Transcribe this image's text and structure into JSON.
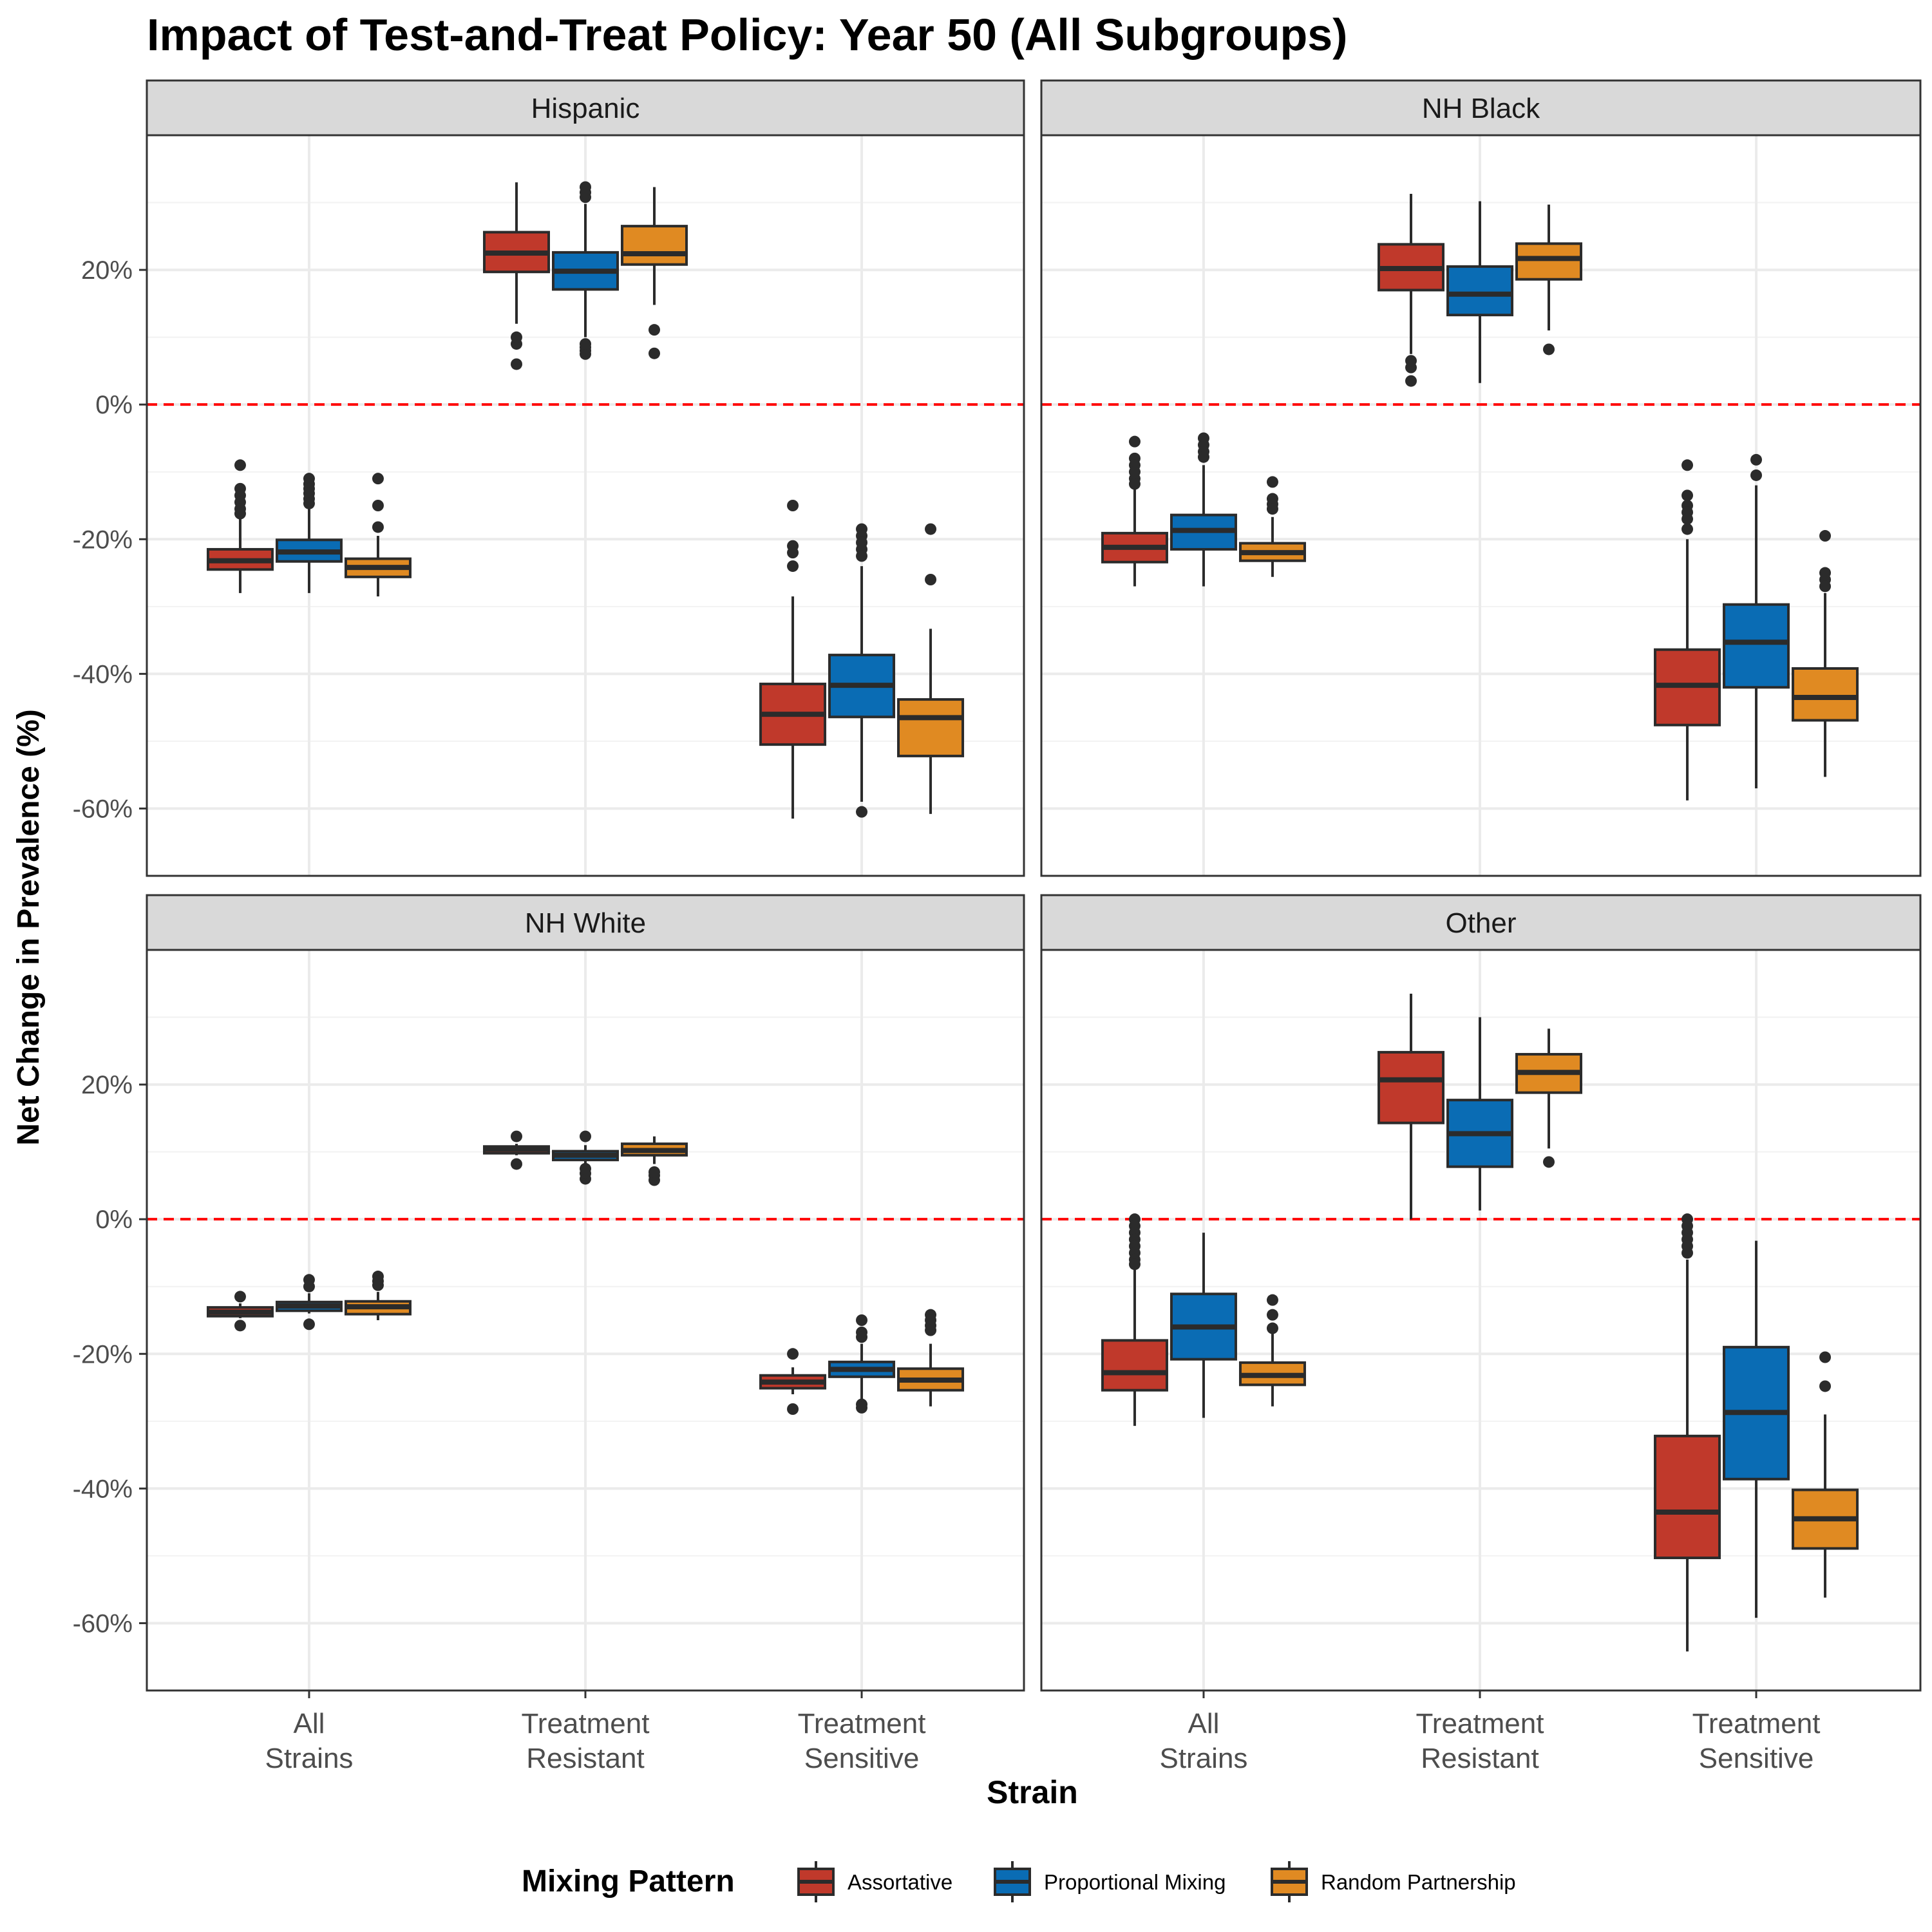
{
  "title": "Impact of Test-and-Treat Policy: Year 50 (All Subgroups)",
  "chart_data": {
    "type": "boxplot",
    "title": "Impact of Test-and-Treat Policy: Year 50 (All Subgroups)",
    "xlabel": "Strain",
    "ylabel": "Net Change in Prevalence (%)",
    "categories": [
      [
        "All",
        "Strains"
      ],
      [
        "Treatment",
        "Resistant"
      ],
      [
        "Treatment",
        "Sensitive"
      ]
    ],
    "ylim": [
      -70,
      40
    ],
    "y_ticks": [
      20,
      0,
      -20,
      -40,
      -60
    ],
    "y_tick_labels": [
      "20%",
      "0%",
      "-20%",
      "-40%",
      "-60%"
    ],
    "reference_line": {
      "y": 0,
      "color": "#ff0000",
      "style": "dashed"
    },
    "grid": true,
    "legend": {
      "title": "Mixing Pattern",
      "position": "bottom",
      "entries": [
        {
          "name": "Assortative",
          "color": "#c0392b"
        },
        {
          "name": "Proportional Mixing",
          "color": "#0a6cb4"
        },
        {
          "name": "Random Partnership",
          "color": "#e08a22"
        }
      ]
    },
    "panels": [
      {
        "name": "Hispanic",
        "boxes": [
          {
            "category": 0,
            "series": 0,
            "lw": -28,
            "q1": -24.5,
            "med": -23.2,
            "q3": -21.5,
            "uw": -17,
            "outliers": [
              -9,
              -12.5,
              -13.5,
              -14.5,
              -15.5,
              -16.2
            ]
          },
          {
            "category": 0,
            "series": 1,
            "lw": -28,
            "q1": -23.3,
            "med": -21.9,
            "q3": -20.1,
            "uw": -15,
            "outliers": [
              -11,
              -11.8,
              -12.5,
              -13.2,
              -14,
              -14.7
            ]
          },
          {
            "category": 0,
            "series": 2,
            "lw": -28.5,
            "q1": -25.6,
            "med": -24.2,
            "q3": -22.9,
            "uw": -19.5,
            "outliers": [
              -11,
              -15,
              -18.2
            ]
          },
          {
            "category": 1,
            "series": 0,
            "lw": 12,
            "q1": 19.7,
            "med": 22.5,
            "q3": 25.6,
            "uw": 33,
            "outliers": [
              9,
              10,
              6
            ]
          },
          {
            "category": 1,
            "series": 1,
            "lw": 10,
            "q1": 17.1,
            "med": 19.8,
            "q3": 22.6,
            "uw": 29.8,
            "outliers": [
              7.5,
              8,
              8.5,
              9,
              30.8,
              31.5,
              32.3
            ]
          },
          {
            "category": 1,
            "series": 2,
            "lw": 14.8,
            "q1": 20.8,
            "med": 22.4,
            "q3": 26.5,
            "uw": 32.3,
            "outliers": [
              7.6,
              11.1
            ]
          },
          {
            "category": 2,
            "series": 0,
            "lw": -61.5,
            "q1": -50.5,
            "med": -46,
            "q3": -41.5,
            "uw": -28.5,
            "outliers": [
              -15,
              -21,
              -22,
              -24
            ]
          },
          {
            "category": 2,
            "series": 1,
            "lw": -59,
            "q1": -46.4,
            "med": -41.7,
            "q3": -37.2,
            "uw": -24,
            "outliers": [
              -18.5,
              -19.5,
              -20.5,
              -21.5,
              -22.5,
              -60.5
            ]
          },
          {
            "category": 2,
            "series": 2,
            "lw": -60.8,
            "q1": -52.2,
            "med": -46.5,
            "q3": -43.8,
            "uw": -33.3,
            "outliers": [
              -18.5,
              -26
            ]
          }
        ]
      },
      {
        "name": "NH Black",
        "boxes": [
          {
            "category": 0,
            "series": 0,
            "lw": -27,
            "q1": -23.4,
            "med": -21.2,
            "q3": -19.1,
            "uw": -12.5,
            "outliers": [
              -5.5,
              -8,
              -9,
              -10,
              -11,
              -11.8
            ]
          },
          {
            "category": 0,
            "series": 1,
            "lw": -27,
            "q1": -21.5,
            "med": -18.7,
            "q3": -16.4,
            "uw": -9,
            "outliers": [
              -5,
              -6,
              -7,
              -7.8
            ]
          },
          {
            "category": 0,
            "series": 2,
            "lw": -25.6,
            "q1": -23.2,
            "med": -22,
            "q3": -20.6,
            "uw": -16.7,
            "outliers": [
              -11.5,
              -14,
              -14.8,
              -15.5
            ]
          },
          {
            "category": 1,
            "series": 0,
            "lw": 7.5,
            "q1": 17,
            "med": 20.2,
            "q3": 23.8,
            "uw": 31.3,
            "outliers": [
              3.5,
              5.5,
              6.5
            ]
          },
          {
            "category": 1,
            "series": 1,
            "lw": 3.2,
            "q1": 13.3,
            "med": 16.4,
            "q3": 20.5,
            "uw": 30.2,
            "outliers": []
          },
          {
            "category": 1,
            "series": 2,
            "lw": 11,
            "q1": 18.6,
            "med": 21.7,
            "q3": 23.9,
            "uw": 29.7,
            "outliers": [
              8.2
            ]
          },
          {
            "category": 2,
            "series": 0,
            "lw": -58.8,
            "q1": -47.6,
            "med": -41.7,
            "q3": -36.4,
            "uw": -20,
            "outliers": [
              -9,
              -13.5,
              -15,
              -16,
              -17,
              -18.5
            ]
          },
          {
            "category": 2,
            "series": 1,
            "lw": -57,
            "q1": -42,
            "med": -35.3,
            "q3": -29.7,
            "uw": -12,
            "outliers": [
              -8.2,
              -10.5
            ]
          },
          {
            "category": 2,
            "series": 2,
            "lw": -55.3,
            "q1": -46.9,
            "med": -43.5,
            "q3": -39.2,
            "uw": -28,
            "outliers": [
              -19.5,
              -25,
              -26,
              -27
            ]
          }
        ]
      },
      {
        "name": "NH White",
        "boxes": [
          {
            "category": 0,
            "series": 0,
            "lw": -14.7,
            "q1": -14.4,
            "med": -13.8,
            "q3": -13.1,
            "uw": -12.5,
            "outliers": [
              -11.5,
              -15.8
            ]
          },
          {
            "category": 0,
            "series": 1,
            "lw": -14,
            "q1": -13.6,
            "med": -12.9,
            "q3": -12.3,
            "uw": -11,
            "outliers": [
              -9,
              -10,
              -15.6
            ]
          },
          {
            "category": 0,
            "series": 2,
            "lw": -15,
            "q1": -14.1,
            "med": -13,
            "q3": -12.2,
            "uw": -10.8,
            "outliers": [
              -8.5,
              -9.2,
              -9.8
            ]
          },
          {
            "category": 1,
            "series": 0,
            "lw": 9.5,
            "q1": 9.8,
            "med": 10.4,
            "q3": 10.8,
            "uw": 11.2,
            "outliers": [
              8.2,
              12.3
            ]
          },
          {
            "category": 1,
            "series": 1,
            "lw": 8.2,
            "q1": 8.8,
            "med": 9.5,
            "q3": 10.1,
            "uw": 11,
            "outliers": [
              6,
              6.8,
              7.5,
              12.3
            ]
          },
          {
            "category": 1,
            "series": 2,
            "lw": 8.2,
            "q1": 9.5,
            "med": 10.2,
            "q3": 11.2,
            "uw": 12.3,
            "outliers": [
              5.8,
              6.5,
              7
            ]
          },
          {
            "category": 2,
            "series": 0,
            "lw": -26,
            "q1": -25.1,
            "med": -24.2,
            "q3": -23.2,
            "uw": -22,
            "outliers": [
              -20,
              -28.2
            ]
          },
          {
            "category": 2,
            "series": 1,
            "lw": -27,
            "q1": -23.4,
            "med": -22.3,
            "q3": -21.2,
            "uw": -18.5,
            "outliers": [
              -15,
              -16.8,
              -17.5,
              -27.5,
              -28
            ]
          },
          {
            "category": 2,
            "series": 2,
            "lw": -27.8,
            "q1": -25.4,
            "med": -23.9,
            "q3": -22.2,
            "uw": -18.5,
            "outliers": [
              -14.2,
              -15,
              -15.8,
              -16.5
            ]
          }
        ]
      },
      {
        "name": "Other",
        "boxes": [
          {
            "category": 0,
            "series": 0,
            "lw": -30.7,
            "q1": -25.4,
            "med": -22.8,
            "q3": -18,
            "uw": -7.5,
            "outliers": [
              0,
              -1,
              -2,
              -3,
              -4,
              -5,
              -6,
              -6.7
            ]
          },
          {
            "category": 0,
            "series": 1,
            "lw": -29.5,
            "q1": -20.8,
            "med": -16,
            "q3": -11.1,
            "uw": -2,
            "outliers": []
          },
          {
            "category": 0,
            "series": 2,
            "lw": -27.8,
            "q1": -24.6,
            "med": -23.2,
            "q3": -21.3,
            "uw": -17,
            "outliers": [
              -12,
              -14.2,
              -16.2
            ]
          },
          {
            "category": 1,
            "series": 0,
            "lw": 0,
            "q1": 14.3,
            "med": 20.7,
            "q3": 24.8,
            "uw": 33.5,
            "outliers": []
          },
          {
            "category": 1,
            "series": 1,
            "lw": 1.3,
            "q1": 7.8,
            "med": 12.7,
            "q3": 17.7,
            "uw": 30,
            "outliers": []
          },
          {
            "category": 1,
            "series": 2,
            "lw": 10.5,
            "q1": 18.8,
            "med": 21.8,
            "q3": 24.5,
            "uw": 28.3,
            "outliers": [
              8.5
            ]
          },
          {
            "category": 2,
            "series": 0,
            "lw": -64.2,
            "q1": -50.3,
            "med": -43.5,
            "q3": -32.2,
            "uw": -6,
            "outliers": [
              0,
              -1,
              -2,
              -3,
              -4,
              -5
            ]
          },
          {
            "category": 2,
            "series": 1,
            "lw": -59.2,
            "q1": -38.6,
            "med": -28.7,
            "q3": -19,
            "uw": -3.2,
            "outliers": []
          },
          {
            "category": 2,
            "series": 2,
            "lw": -56.2,
            "q1": -48.9,
            "med": -44.5,
            "q3": -40.2,
            "uw": -29,
            "outliers": [
              -20.5,
              -24.8
            ]
          }
        ]
      }
    ]
  }
}
